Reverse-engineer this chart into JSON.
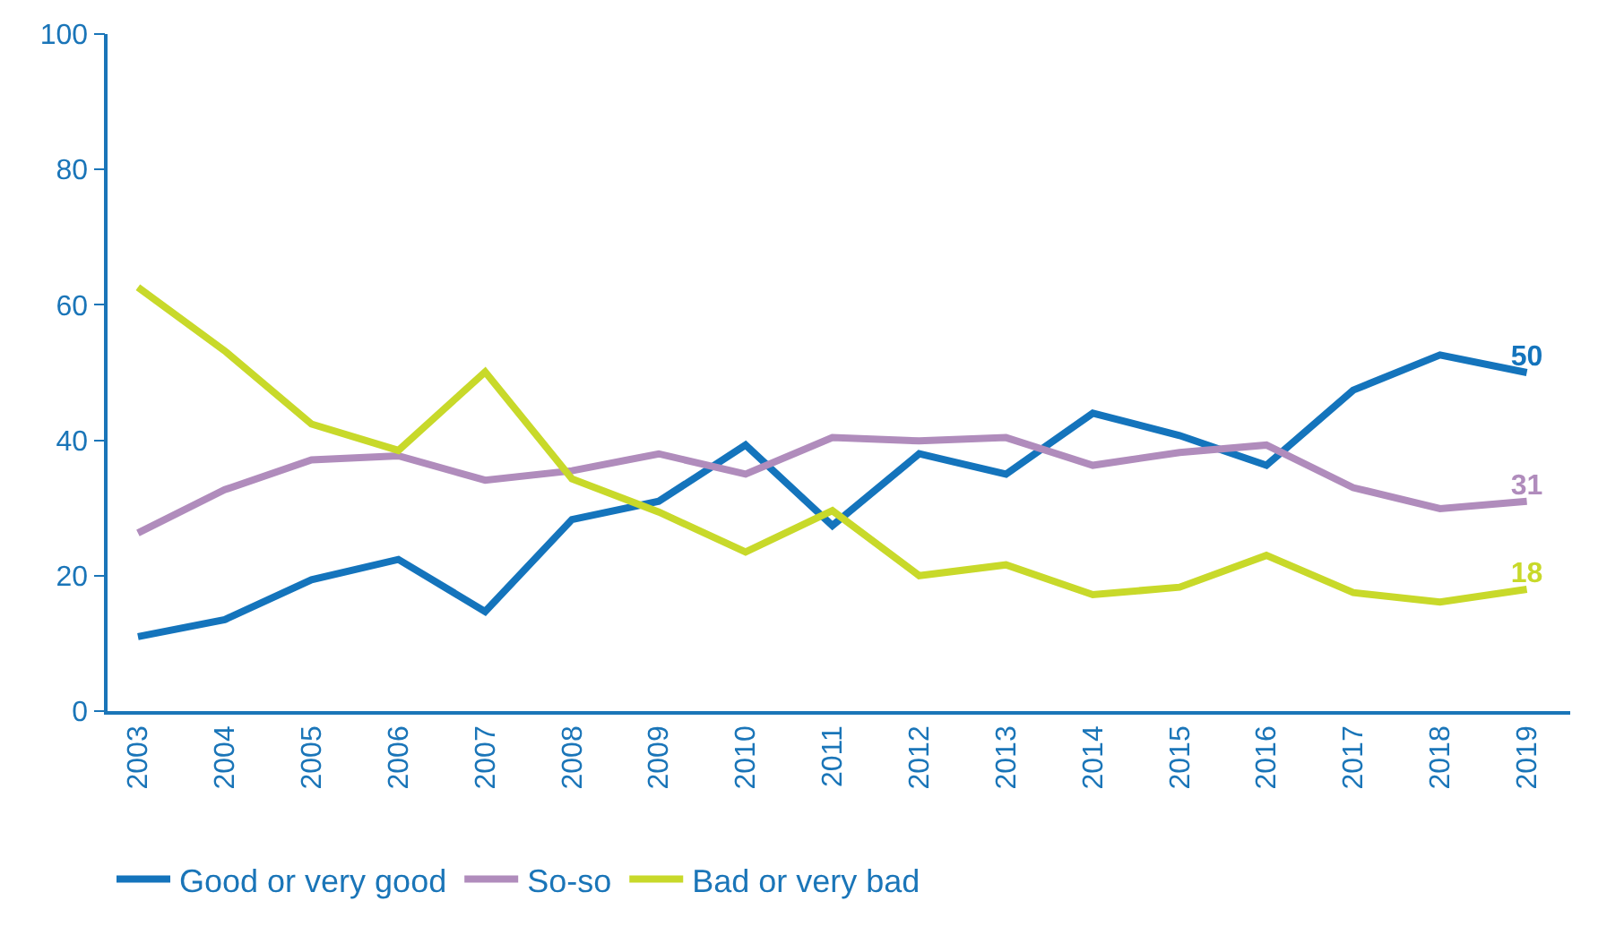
{
  "chart_data": {
    "type": "line",
    "categories": [
      "2003",
      "2004",
      "2005",
      "2006",
      "2007",
      "2008",
      "2009",
      "2010",
      "2011",
      "2012",
      "2013",
      "2014",
      "2015",
      "2016",
      "2017",
      "2018",
      "2019"
    ],
    "series": [
      {
        "name": "Good or very good",
        "color": "#1474bc",
        "values": [
          11,
          13.5,
          19.4,
          22.4,
          14.7,
          28.3,
          31,
          39.3,
          27.4,
          38,
          35,
          44,
          40.7,
          36.3,
          47.4,
          52.6,
          50
        ],
        "value_labels": [
          null,
          null,
          null,
          null,
          null,
          null,
          null,
          null,
          null,
          null,
          null,
          null,
          null,
          null,
          null,
          null,
          "50"
        ]
      },
      {
        "name": "So-so",
        "color": "#b08cbc",
        "values": [
          26.3,
          32.7,
          37.1,
          37.7,
          34.1,
          35.5,
          38,
          35,
          40.4,
          39.9,
          40.4,
          36.3,
          38.2,
          39.3,
          33,
          29.9,
          31
        ],
        "value_labels": [
          null,
          null,
          null,
          null,
          null,
          null,
          null,
          null,
          null,
          null,
          null,
          null,
          null,
          null,
          null,
          null,
          "31"
        ]
      },
      {
        "name": "Bad or very bad",
        "color": "#c8d92a",
        "values": [
          62.6,
          53.2,
          42.4,
          38.5,
          50.1,
          34.3,
          29.4,
          23.5,
          29.6,
          20,
          21.6,
          17.2,
          18.3,
          23,
          17.5,
          16.1,
          18
        ],
        "value_labels": [
          null,
          null,
          null,
          null,
          null,
          null,
          null,
          null,
          null,
          null,
          null,
          null,
          null,
          null,
          null,
          null,
          "18"
        ]
      }
    ],
    "ylim": [
      0,
      100
    ],
    "yticks": [
      0,
      20,
      40,
      60,
      80,
      100
    ],
    "legend": "bottom left",
    "marker": "none",
    "line_style": "solid"
  }
}
